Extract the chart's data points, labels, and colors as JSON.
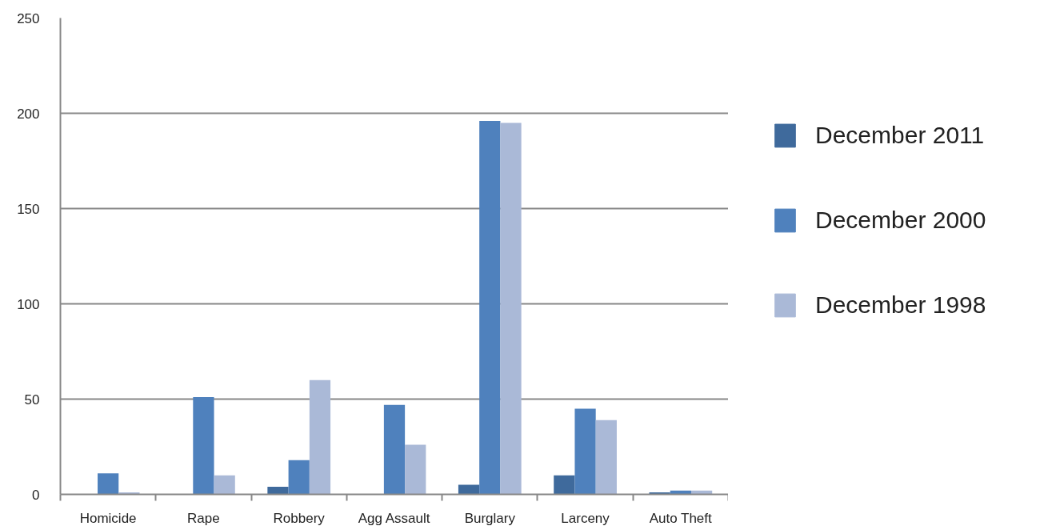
{
  "chart_data": {
    "type": "bar",
    "categories": [
      "Homicide",
      "Rape",
      "Robbery",
      "Agg Assault",
      "Burglary",
      "Larceny",
      "Auto Theft"
    ],
    "series": [
      {
        "name": "December 2011",
        "color": "#3f6a9c",
        "values": [
          0,
          0,
          4,
          0,
          5,
          10,
          1
        ]
      },
      {
        "name": "December 2000",
        "color": "#4f81bd",
        "values": [
          11,
          51,
          18,
          47,
          196,
          45,
          2
        ]
      },
      {
        "name": "December 1998",
        "color": "#aab9d7",
        "values": [
          1,
          10,
          60,
          26,
          195,
          39,
          2
        ]
      }
    ],
    "ylim": [
      0,
      250
    ],
    "yticks": [
      0,
      50,
      100,
      150,
      200,
      250
    ],
    "grid": "y",
    "legend": "right"
  }
}
